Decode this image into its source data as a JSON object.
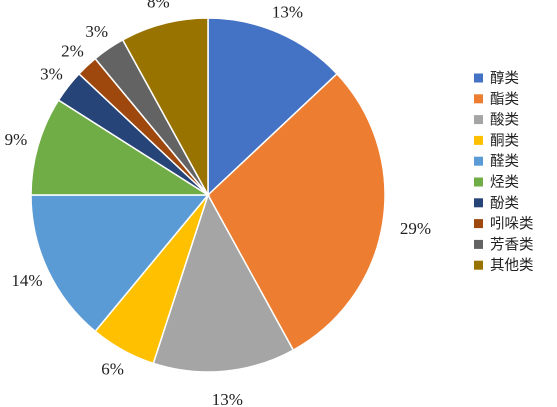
{
  "chart_data": {
    "type": "pie",
    "title": "",
    "slices": [
      {
        "label": "醇类",
        "value": 13,
        "value_label": "13%",
        "color": "#4472C4"
      },
      {
        "label": "酯类",
        "value": 29,
        "value_label": "29%",
        "color": "#ED7D31"
      },
      {
        "label": "酸类",
        "value": 13,
        "value_label": "13%",
        "color": "#A5A5A5"
      },
      {
        "label": "酮类",
        "value": 6,
        "value_label": "6%",
        "color": "#FFC000"
      },
      {
        "label": "醛类",
        "value": 14,
        "value_label": "14%",
        "color": "#5B9BD5"
      },
      {
        "label": "烃类",
        "value": 9,
        "value_label": "9%",
        "color": "#70AD47"
      },
      {
        "label": "酚类",
        "value": 3,
        "value_label": "3%",
        "color": "#264478"
      },
      {
        "label": "吲哚类",
        "value": 2,
        "value_label": "2%",
        "color": "#9E480E"
      },
      {
        "label": "芳香类",
        "value": 3,
        "value_label": "3%",
        "color": "#636363"
      },
      {
        "label": "其他类",
        "value": 8,
        "value_label": "8%",
        "color": "#997300"
      }
    ],
    "start_angle": "12 o'clock",
    "direction": "clockwise",
    "legend": {
      "position": "right"
    }
  }
}
